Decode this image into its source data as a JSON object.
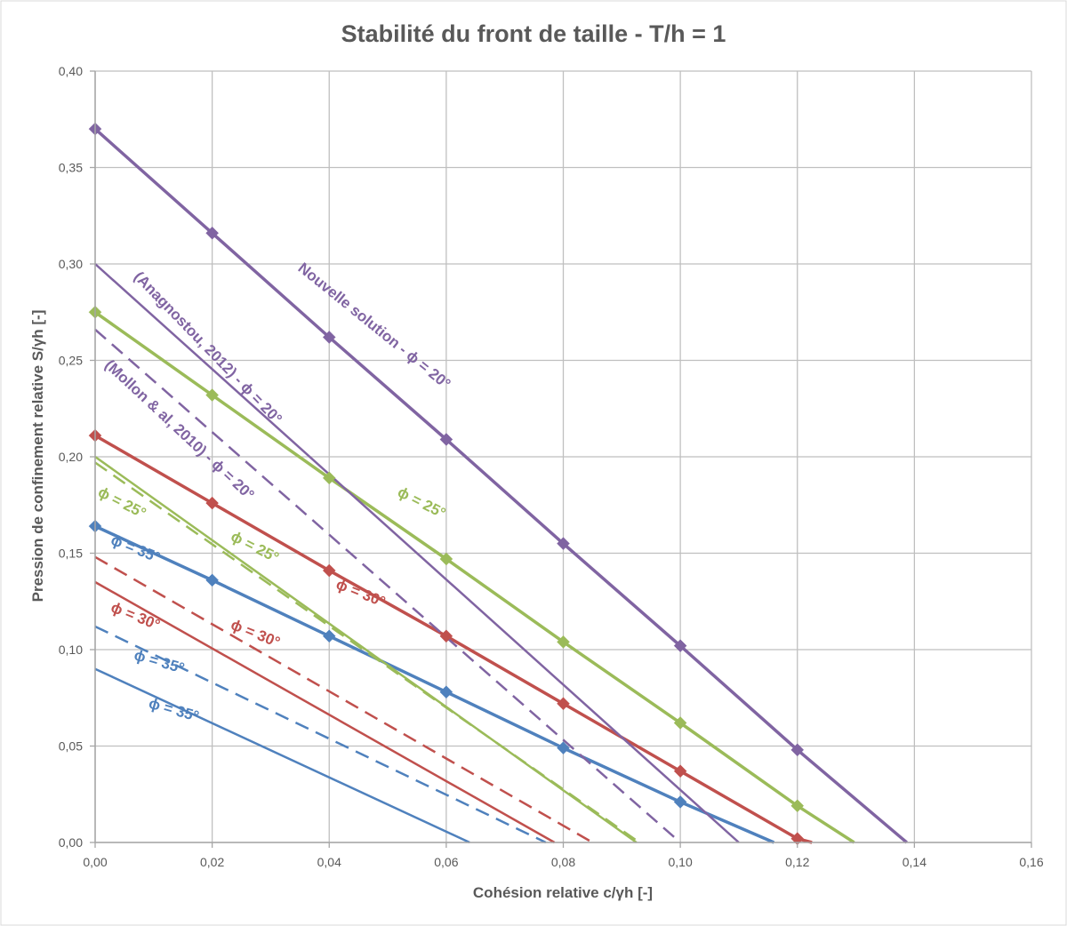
{
  "chart_data": {
    "type": "line",
    "title": "Stabilité du front de taille - T/h = 1",
    "xlabel": "Cohésion relative c/γh [-]",
    "ylabel": "Pression de confinement relative S/γh [-]",
    "xlim": [
      0,
      0.16
    ],
    "ylim": [
      0,
      0.4
    ],
    "xticks": [
      "0,00",
      "0,02",
      "0,04",
      "0,06",
      "0,08",
      "0,10",
      "0,12",
      "0,14",
      "0,16"
    ],
    "yticks": [
      "0,00",
      "0,05",
      "0,10",
      "0,15",
      "0,20",
      "0,25",
      "0,30",
      "0,35",
      "0,40"
    ],
    "grid": true,
    "legend": "none",
    "colors": {
      "phi20": "#8064a2",
      "phi25": "#9bbb59",
      "phi30": "#c0504d",
      "phi35": "#4f81bd"
    },
    "series": [
      {
        "name": "Nouvelle solution - ϕ = 20°",
        "color": "#8064a2",
        "dash": false,
        "width": 3.5,
        "markers": true,
        "x": [
          0,
          0.02,
          0.04,
          0.06,
          0.08,
          0.1,
          0.12,
          0.1387
        ],
        "y": [
          0.37,
          0.316,
          0.262,
          0.209,
          0.155,
          0.102,
          0.048,
          0
        ]
      },
      {
        "name": "Nouvelle solution - ϕ = 25°",
        "color": "#9bbb59",
        "dash": false,
        "width": 3.5,
        "markers": true,
        "x": [
          0,
          0.02,
          0.04,
          0.06,
          0.08,
          0.1,
          0.12,
          0.1297
        ],
        "y": [
          0.275,
          0.232,
          0.189,
          0.147,
          0.104,
          0.062,
          0.019,
          0
        ]
      },
      {
        "name": "Nouvelle solution - ϕ = 30°",
        "color": "#c0504d",
        "dash": false,
        "width": 3.5,
        "markers": true,
        "x": [
          0,
          0.02,
          0.04,
          0.06,
          0.08,
          0.1,
          0.12,
          0.1225
        ],
        "y": [
          0.211,
          0.176,
          0.141,
          0.107,
          0.072,
          0.037,
          0.002,
          0
        ]
      },
      {
        "name": "Nouvelle solution - ϕ = 35°",
        "color": "#4f81bd",
        "dash": false,
        "width": 3.5,
        "markers": true,
        "x": [
          0,
          0.02,
          0.04,
          0.06,
          0.08,
          0.1,
          0.116
        ],
        "y": [
          0.164,
          0.136,
          0.107,
          0.078,
          0.049,
          0.021,
          0
        ]
      },
      {
        "name": "(Anagnostou, 2012) - ϕ = 20°",
        "color": "#8064a2",
        "dash": false,
        "width": 2.5,
        "markers": false,
        "x": [
          0,
          0.11
        ],
        "y": [
          0.3,
          0
        ]
      },
      {
        "name": "(Anagnostou, 2012) - ϕ = 25°",
        "color": "#9bbb59",
        "dash": false,
        "width": 2.5,
        "markers": false,
        "x": [
          0,
          0.0925
        ],
        "y": [
          0.2,
          0
        ]
      },
      {
        "name": "(Anagnostou, 2012) - ϕ = 30°",
        "color": "#c0504d",
        "dash": false,
        "width": 2.5,
        "markers": false,
        "x": [
          0,
          0.0785
        ],
        "y": [
          0.135,
          0
        ]
      },
      {
        "name": "(Anagnostou, 2012) - ϕ = 35°",
        "color": "#4f81bd",
        "dash": false,
        "width": 2.5,
        "markers": false,
        "x": [
          0,
          0.064
        ],
        "y": [
          0.09,
          0
        ]
      },
      {
        "name": "(Mollon & al, 2010) - ϕ = 20°",
        "color": "#8064a2",
        "dash": true,
        "width": 2.5,
        "markers": false,
        "x": [
          0,
          0.1
        ],
        "y": [
          0.266,
          0
        ]
      },
      {
        "name": "(Mollon & al, 2010) - ϕ = 25°",
        "color": "#9bbb59",
        "dash": true,
        "width": 2.5,
        "markers": false,
        "x": [
          0,
          0.093
        ],
        "y": [
          0.197,
          0
        ]
      },
      {
        "name": "(Mollon & al, 2010) - ϕ = 30°",
        "color": "#c0504d",
        "dash": true,
        "width": 2.5,
        "markers": false,
        "x": [
          0,
          0.085
        ],
        "y": [
          0.148,
          0
        ]
      },
      {
        "name": "(Mollon & al, 2010) - ϕ = 35°",
        "color": "#4f81bd",
        "dash": true,
        "width": 2.5,
        "markers": false,
        "x": [
          0,
          0.077
        ],
        "y": [
          0.112,
          0
        ]
      }
    ],
    "annotations": [
      {
        "text": "Nouvelle solution - ϕ = 20°",
        "color": "#8064a2",
        "x": 0.0345,
        "y": 0.297,
        "angle": 39
      },
      {
        "text": "(Anagnostou, 2012) - ϕ = 20°",
        "color": "#8064a2",
        "x": 0.0065,
        "y": 0.293,
        "angle": 46
      },
      {
        "text": "(Mollon & al, 2010) - ϕ = 20°",
        "color": "#8064a2",
        "x": 0.0015,
        "y": 0.247,
        "angle": 43
      },
      {
        "text": "ϕ = 25°",
        "color": "#9bbb59",
        "x": 0.0515,
        "y": 0.18,
        "angle": 27
      },
      {
        "text": "ϕ = 25°",
        "color": "#9bbb59",
        "x": 0.0003,
        "y": 0.18,
        "angle": 27
      },
      {
        "text": "ϕ = 25°",
        "color": "#9bbb59",
        "x": 0.023,
        "y": 0.157,
        "angle": 27
      },
      {
        "text": "ϕ = 35°",
        "color": "#4f81bd",
        "x": 0.0025,
        "y": 0.155,
        "angle": 22
      },
      {
        "text": "ϕ = 30°",
        "color": "#c0504d",
        "x": 0.041,
        "y": 0.132,
        "angle": 22
      },
      {
        "text": "ϕ = 30°",
        "color": "#c0504d",
        "x": 0.0025,
        "y": 0.12,
        "angle": 22
      },
      {
        "text": "ϕ = 30°",
        "color": "#c0504d",
        "x": 0.023,
        "y": 0.111,
        "angle": 22
      },
      {
        "text": "ϕ = 35°",
        "color": "#4f81bd",
        "x": 0.0065,
        "y": 0.095,
        "angle": 16
      },
      {
        "text": "ϕ = 35°",
        "color": "#4f81bd",
        "x": 0.009,
        "y": 0.07,
        "angle": 16
      }
    ]
  }
}
